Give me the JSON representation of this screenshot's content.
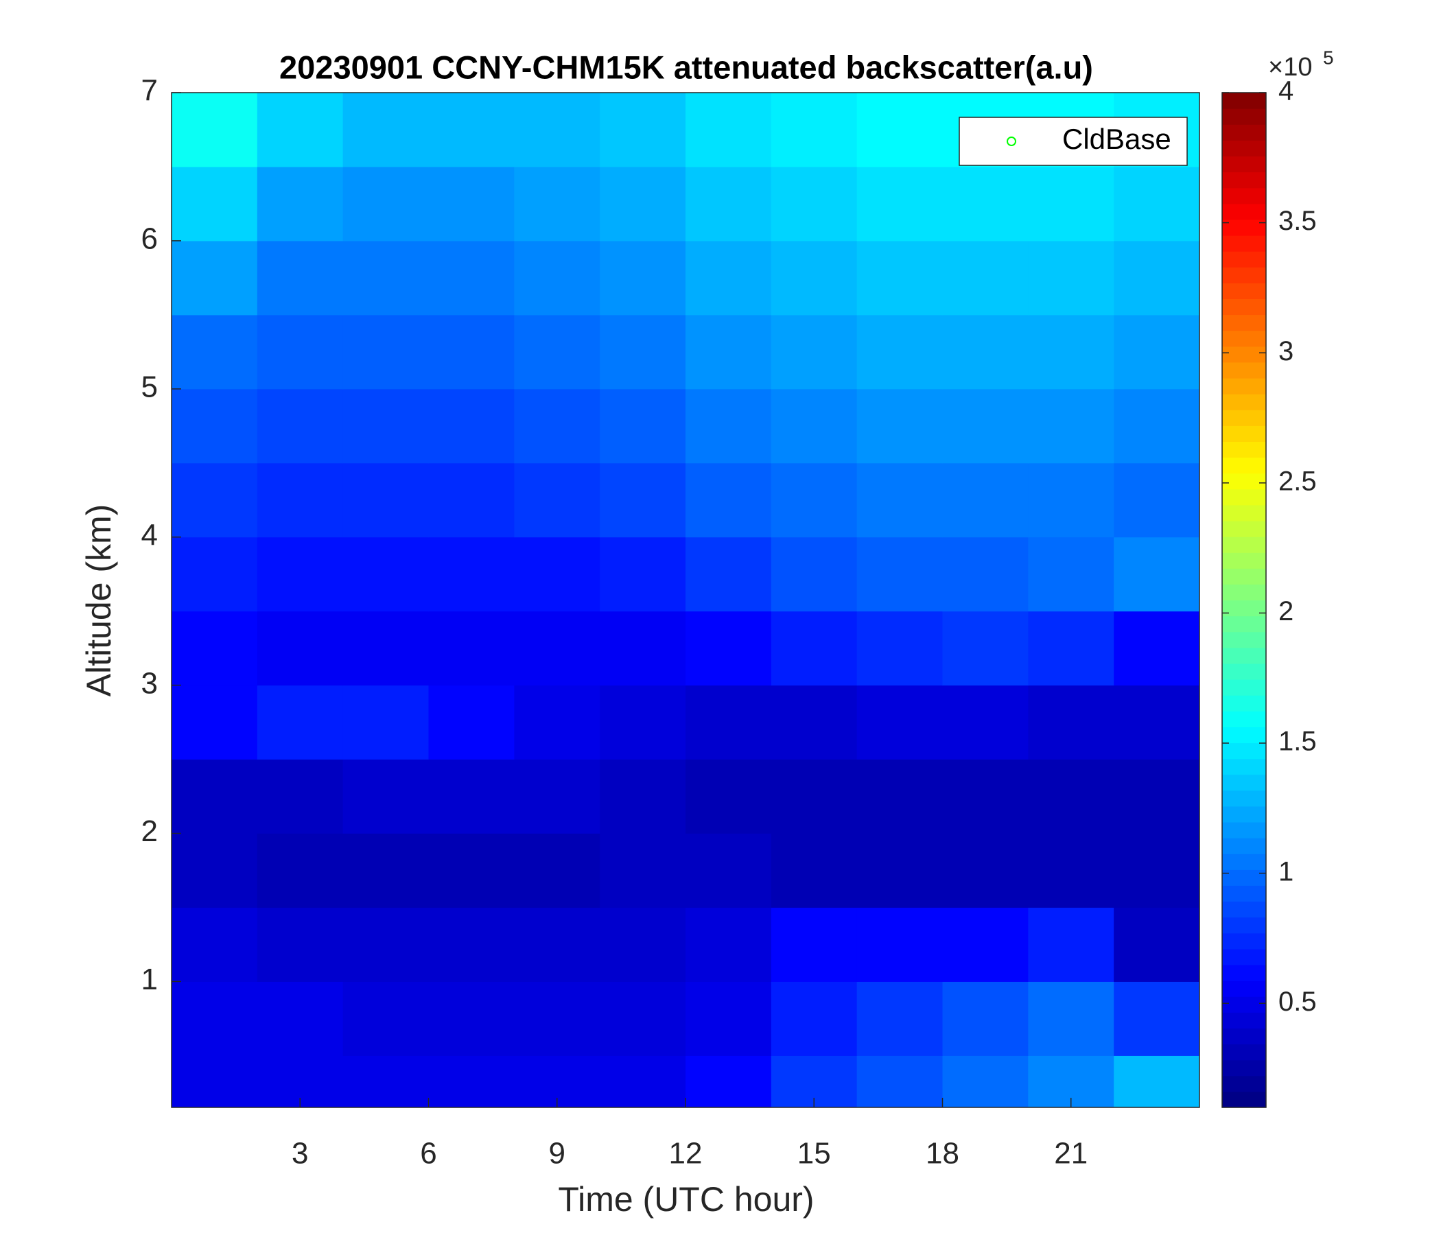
{
  "chart_data": {
    "type": "heatmap",
    "title": "20230901 CCNY-CHM15K attenuated backscatter(a.u)",
    "xlabel": "Time (UTC hour)",
    "ylabel": "Altitude (km)",
    "xlim": [
      0,
      24
    ],
    "xticks": [
      3,
      6,
      9,
      12,
      15,
      18,
      21
    ],
    "ylim": [
      0.15,
      7
    ],
    "yticks": [
      1,
      2,
      3,
      4,
      5,
      6,
      7
    ],
    "x_bins": [
      0,
      2,
      4,
      6,
      8,
      10,
      12,
      14,
      16,
      18,
      20,
      22,
      24
    ],
    "y_bins": [
      0.15,
      0.5,
      1,
      1.5,
      2,
      2.5,
      3,
      3.5,
      4,
      4.5,
      5,
      5.5,
      6,
      6.5,
      7
    ],
    "z": [
      [
        0.5,
        0.5,
        0.5,
        0.5,
        0.5,
        0.5,
        0.6,
        0.8,
        0.9,
        1.0,
        1.1,
        1.3
      ],
      [
        0.5,
        0.5,
        0.45,
        0.45,
        0.45,
        0.45,
        0.5,
        0.7,
        0.8,
        0.9,
        1.0,
        0.8
      ],
      [
        0.45,
        0.4,
        0.4,
        0.4,
        0.4,
        0.4,
        0.45,
        0.6,
        0.6,
        0.6,
        0.7,
        0.35
      ],
      [
        0.35,
        0.3,
        0.3,
        0.3,
        0.3,
        0.35,
        0.35,
        0.3,
        0.3,
        0.3,
        0.3,
        0.3
      ],
      [
        0.35,
        0.35,
        0.4,
        0.4,
        0.4,
        0.35,
        0.3,
        0.3,
        0.3,
        0.3,
        0.3,
        0.3
      ],
      [
        0.6,
        0.7,
        0.7,
        0.6,
        0.5,
        0.45,
        0.4,
        0.4,
        0.45,
        0.45,
        0.4,
        0.4
      ],
      [
        0.6,
        0.55,
        0.55,
        0.55,
        0.55,
        0.55,
        0.6,
        0.7,
        0.75,
        0.8,
        0.75,
        0.6
      ],
      [
        0.7,
        0.65,
        0.65,
        0.65,
        0.65,
        0.7,
        0.8,
        0.9,
        0.95,
        0.95,
        1.0,
        1.1
      ],
      [
        0.8,
        0.75,
        0.75,
        0.75,
        0.8,
        0.85,
        0.95,
        1.0,
        1.05,
        1.05,
        1.05,
        1.0
      ],
      [
        0.9,
        0.85,
        0.85,
        0.85,
        0.9,
        0.95,
        1.05,
        1.1,
        1.15,
        1.15,
        1.15,
        1.1
      ],
      [
        1.0,
        0.95,
        0.95,
        0.95,
        1.0,
        1.05,
        1.15,
        1.2,
        1.25,
        1.25,
        1.25,
        1.2
      ],
      [
        1.2,
        1.05,
        1.05,
        1.05,
        1.1,
        1.15,
        1.25,
        1.3,
        1.35,
        1.35,
        1.35,
        1.3
      ],
      [
        1.4,
        1.2,
        1.15,
        1.15,
        1.2,
        1.25,
        1.35,
        1.4,
        1.45,
        1.45,
        1.45,
        1.4
      ],
      [
        1.6,
        1.4,
        1.3,
        1.3,
        1.3,
        1.35,
        1.45,
        1.5,
        1.55,
        1.55,
        1.55,
        1.5
      ]
    ],
    "colormap": "jet",
    "colorbar": {
      "lim": [
        0.1,
        4
      ],
      "ticks": [
        0.5,
        1,
        1.5,
        2,
        2.5,
        3,
        3.5,
        4
      ],
      "scale_label": "×10",
      "scale_exponent": "5"
    },
    "series": [
      {
        "name": "CldBase",
        "color": "#00ff00"
      }
    ],
    "legend": "upper right"
  }
}
